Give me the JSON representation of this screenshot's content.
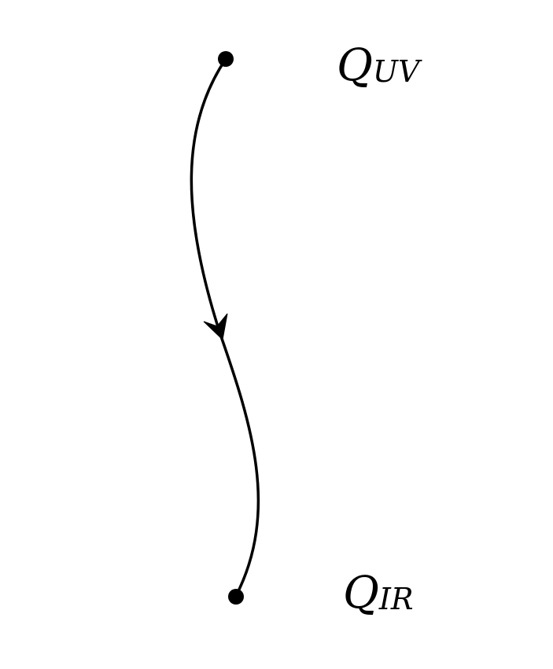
{
  "diagram": {
    "colors": {
      "stroke": "#000000",
      "background": "#ffffff"
    },
    "nodes": [
      {
        "id": "uv",
        "main": "Q",
        "subscript": "UV"
      },
      {
        "id": "ir",
        "main": "Q",
        "subscript": "IR"
      }
    ],
    "flow": {
      "from": "uv",
      "to": "ir",
      "arrow_direction": "down"
    }
  }
}
